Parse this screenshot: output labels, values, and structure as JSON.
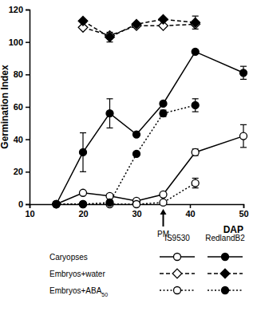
{
  "chart_data": {
    "type": "line",
    "x_label": "DAP",
    "y_label": "Germination Index",
    "xlim": [
      10,
      50
    ],
    "xticks": [
      10,
      20,
      30,
      40,
      50
    ],
    "ylim": [
      0,
      120
    ],
    "yticks": [
      0,
      20,
      40,
      60,
      80,
      100,
      120
    ],
    "x": [
      15,
      20,
      25,
      30,
      35,
      41,
      50
    ],
    "annotations": [
      {
        "text": "PM",
        "x": 35
      }
    ],
    "series": [
      {
        "name": "Caryopses",
        "group": "IS9530",
        "color": "#000000",
        "marker": "circle-open",
        "line_style": "solid",
        "values": [
          0,
          7,
          5,
          2,
          6,
          32,
          42
        ],
        "errors": [
          null,
          null,
          null,
          null,
          null,
          2,
          7
        ]
      },
      {
        "name": "Caryopses",
        "group": "RedlandB2",
        "color": "#000000",
        "marker": "circle",
        "line_style": "solid",
        "values": [
          0,
          32,
          56,
          43,
          62,
          94,
          81
        ],
        "errors": [
          null,
          12,
          9,
          null,
          null,
          null,
          4
        ]
      },
      {
        "name": "Embryos+water",
        "group": "IS9530",
        "color": "#000000",
        "marker": "diamond-open",
        "line_style": "dashed",
        "values": [
          null,
          109,
          104,
          110,
          110,
          111,
          null
        ],
        "errors": [
          null,
          null,
          null,
          null,
          null,
          null,
          null
        ]
      },
      {
        "name": "Embryos+water",
        "group": "RedlandB2",
        "color": "#000000",
        "marker": "diamond",
        "line_style": "dashed",
        "values": [
          null,
          113,
          103,
          111,
          114,
          112,
          null
        ],
        "errors": [
          null,
          null,
          3,
          null,
          null,
          4,
          null
        ]
      },
      {
        "name": "Embryos+ABA50",
        "group": "IS9530",
        "color": "#000000",
        "marker": "circle-open",
        "line_style": "dotted",
        "values": [
          0,
          0,
          0,
          0,
          1,
          13,
          null
        ],
        "errors": [
          null,
          null,
          null,
          null,
          null,
          3,
          null
        ]
      },
      {
        "name": "Embryos+ABA50",
        "group": "RedlandB2",
        "color": "#000000",
        "marker": "circle",
        "line_style": "dotted",
        "values": [
          0,
          0,
          1,
          31,
          56,
          61,
          null
        ],
        "errors": [
          null,
          null,
          null,
          null,
          2,
          4,
          null
        ]
      }
    ]
  }
}
